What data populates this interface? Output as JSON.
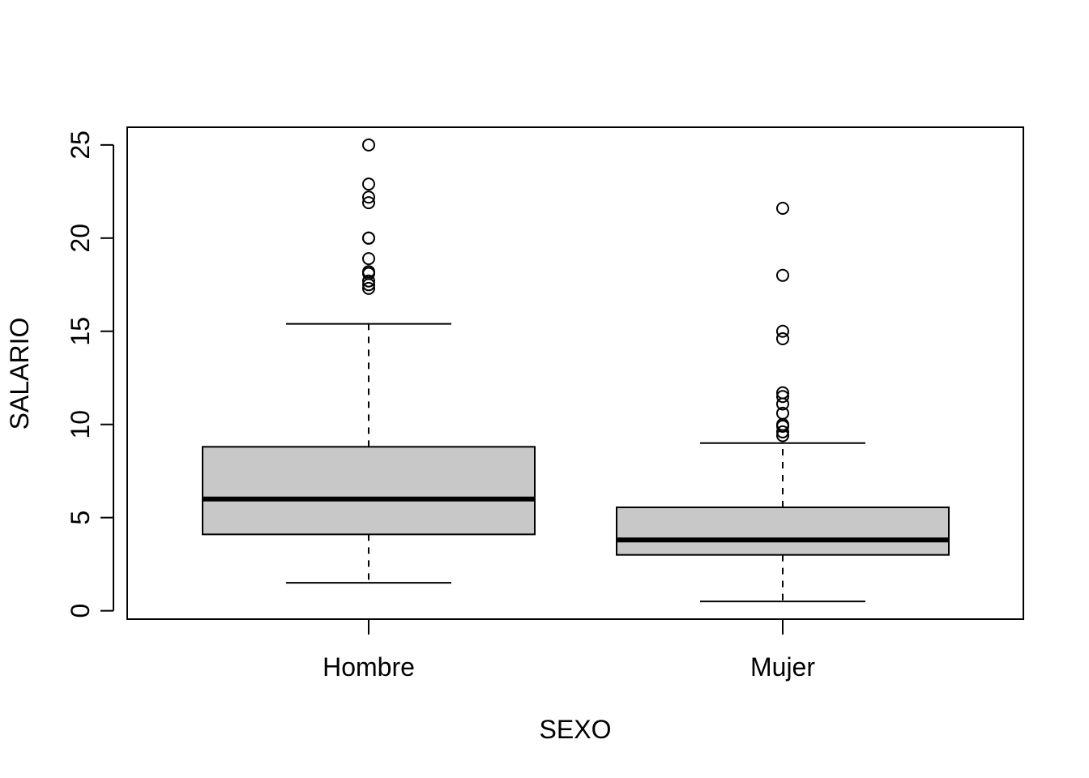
{
  "chart_data": {
    "type": "boxplot",
    "xlabel": "SEXO",
    "ylabel": "SALARIO",
    "ylim": [
      -0.45,
      25.95
    ],
    "y_ticks": [
      0,
      5,
      10,
      15,
      20,
      25
    ],
    "y_tick_labels": [
      "0",
      "5",
      "10",
      "15",
      "20",
      "25"
    ],
    "grid": false,
    "legend": "none",
    "box_fill": "#c8c8c8",
    "categories": [
      "Hombre",
      "Mujer"
    ],
    "boxes": [
      {
        "category": "Hombre",
        "whisker_low": 1.5,
        "q1": 4.1,
        "median": 6.0,
        "q3": 8.8,
        "whisker_high": 15.4,
        "outliers": [
          17.3,
          17.5,
          17.7,
          18.1,
          18.2,
          18.9,
          20.0,
          20.0,
          21.9,
          22.2,
          22.9,
          25.0
        ]
      },
      {
        "category": "Mujer",
        "whisker_low": 0.5,
        "q1": 3.0,
        "median": 3.8,
        "q3": 5.55,
        "whisker_high": 9.0,
        "outliers": [
          9.4,
          9.6,
          9.9,
          10.0,
          10.6,
          11.1,
          11.5,
          11.7,
          14.6,
          15.0,
          18.0,
          21.6
        ]
      }
    ]
  }
}
